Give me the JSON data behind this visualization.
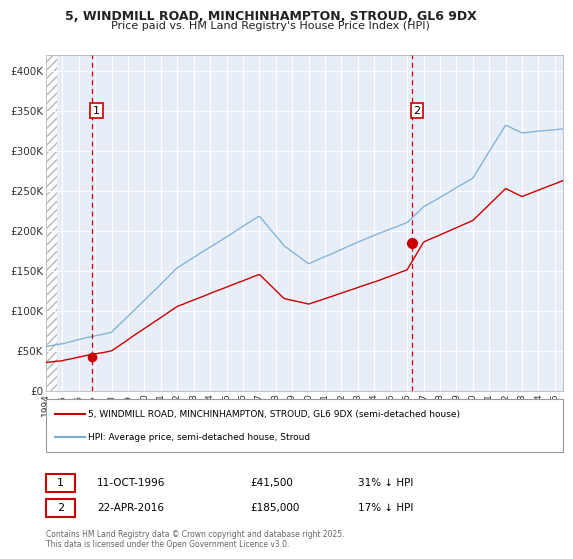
{
  "title_line1": "5, WINDMILL ROAD, MINCHINHAMPTON, STROUD, GL6 9DX",
  "title_line2": "Price paid vs. HM Land Registry's House Price Index (HPI)",
  "ylim": [
    0,
    420000
  ],
  "yticks": [
    0,
    50000,
    100000,
    150000,
    200000,
    250000,
    300000,
    350000,
    400000
  ],
  "ytick_labels": [
    "£0",
    "£50K",
    "£100K",
    "£150K",
    "£200K",
    "£250K",
    "£300K",
    "£350K",
    "£400K"
  ],
  "xlim_start": 1994.0,
  "xlim_end": 2025.5,
  "xticks": [
    1994,
    1995,
    1996,
    1997,
    1998,
    1999,
    2000,
    2001,
    2002,
    2003,
    2004,
    2005,
    2006,
    2007,
    2008,
    2009,
    2010,
    2011,
    2012,
    2013,
    2014,
    2015,
    2016,
    2017,
    2018,
    2019,
    2020,
    2021,
    2022,
    2023,
    2024,
    2025
  ],
  "sale1_x": 1996.78,
  "sale1_y": 41500,
  "sale1_label": "1",
  "sale2_x": 2016.31,
  "sale2_y": 185000,
  "sale2_label": "2",
  "sale_color": "#cc0000",
  "hpi_color": "#7aaed6",
  "legend_line1": "5, WINDMILL ROAD, MINCHINHAMPTON, STROUD, GL6 9DX (semi-detached house)",
  "legend_line2": "HPI: Average price, semi-detached house, Stroud",
  "annotation1_date": "11-OCT-1996",
  "annotation1_price": "£41,500",
  "annotation1_hpi": "31% ↓ HPI",
  "annotation2_date": "22-APR-2016",
  "annotation2_price": "£185,000",
  "annotation2_hpi": "17% ↓ HPI",
  "copyright_text": "Contains HM Land Registry data © Crown copyright and database right 2025.\nThis data is licensed under the Open Government Licence v3.0.",
  "bg_color": "#e8eef8",
  "grid_color": "#ffffff"
}
